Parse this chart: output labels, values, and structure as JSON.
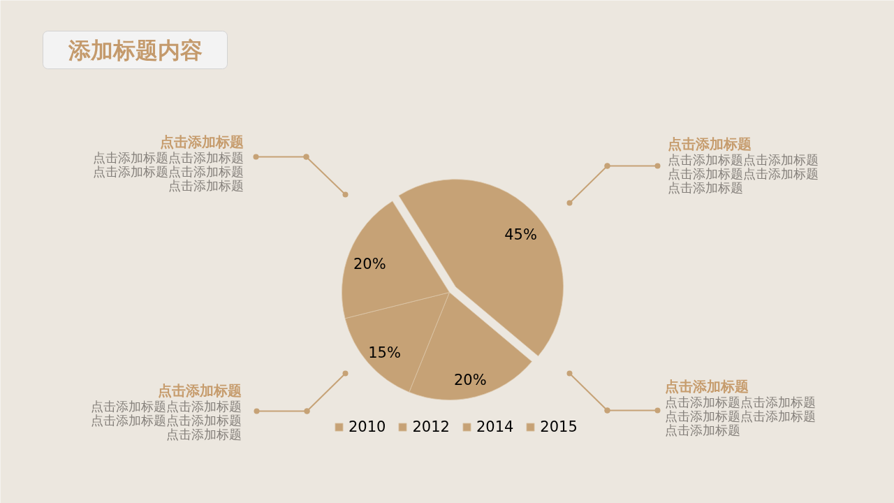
{
  "chart_data": {
    "type": "pie",
    "title": "添加标题内容",
    "categories": [
      "2010",
      "2012",
      "2014",
      "2015"
    ],
    "values": [
      45,
      20,
      15,
      20
    ],
    "colors": [
      "#c6a276",
      "#c6a276",
      "#c6a276",
      "#c6a276"
    ],
    "value_labels": [
      "45%",
      "20%",
      "15%",
      "20%"
    ],
    "legend": "bottom",
    "annotations": [
      "点击添加标题",
      "点击添加标题点击添加标题点击添加标题点击添加标题点击添加标题",
      "点击添加标题",
      "点击添加标题点击添加标题点击添加标题点击添加标题点击添加标题",
      "点击添加标题",
      "点击添加标题点击添加标题点击添加标题点击添加标题点击添加标题",
      "点击添加标题",
      "点击添加标题点击添加标题点击添加标题点击添加标题点击添加标题"
    ]
  }
}
